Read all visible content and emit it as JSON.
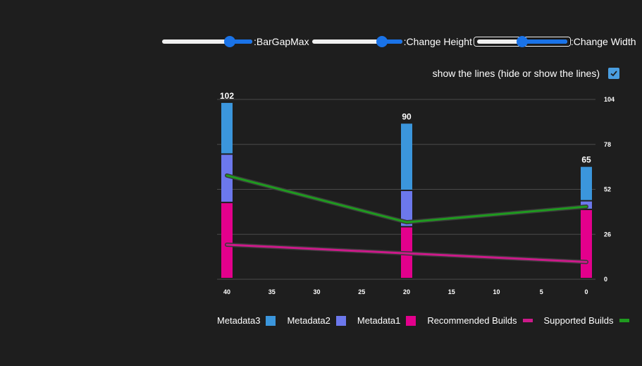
{
  "controls": {
    "sliders": [
      {
        "label": ":BarGapMax",
        "value": 0.75
      },
      {
        "label": ":Change Height",
        "value": 0.78
      },
      {
        "label": ":Change Width",
        "value": 0.5
      }
    ],
    "toggle_label": "show the lines (hide or show the lines)",
    "toggle_checked": true
  },
  "colors": {
    "metadata3": "#3b96dc",
    "metadata2": "#6c78ec",
    "metadata1": "#e3008c",
    "recommended": "#cc1a8a",
    "supported": "#1f9a1f",
    "grid": "#4a4a4a",
    "text": "#ffffff"
  },
  "chart_data": {
    "type": "bar",
    "stacked": true,
    "x": [
      40,
      20,
      0
    ],
    "xlim": [
      40,
      0
    ],
    "xticks": [
      "40",
      "35",
      "30",
      "25",
      "20",
      "15",
      "10",
      "5",
      "0"
    ],
    "ylim": [
      0,
      104
    ],
    "yticks": [
      "0",
      "26",
      "52",
      "78",
      "104"
    ],
    "y_axis_position": "right",
    "grid": true,
    "total_labels": [
      "102",
      "90",
      "65"
    ],
    "series": [
      {
        "name": "Metadata1",
        "kind": "bar",
        "values": [
          44,
          30,
          40
        ]
      },
      {
        "name": "Metadata2",
        "kind": "bar",
        "values": [
          28,
          21,
          5
        ]
      },
      {
        "name": "Metadata3",
        "kind": "bar",
        "values": [
          30,
          39,
          20
        ]
      },
      {
        "name": "Recommended Builds",
        "kind": "line",
        "values": [
          20,
          15,
          10
        ]
      },
      {
        "name": "Supported Builds",
        "kind": "line",
        "values": [
          60,
          33,
          42
        ]
      }
    ],
    "legend": {
      "position": "bottom",
      "items": [
        {
          "name": "Metadata3",
          "shape": "box"
        },
        {
          "name": "Metadata2",
          "shape": "box"
        },
        {
          "name": "Metadata1",
          "shape": "box"
        },
        {
          "name": "Recommended Builds",
          "shape": "line"
        },
        {
          "name": "Supported Builds",
          "shape": "line"
        }
      ]
    }
  }
}
